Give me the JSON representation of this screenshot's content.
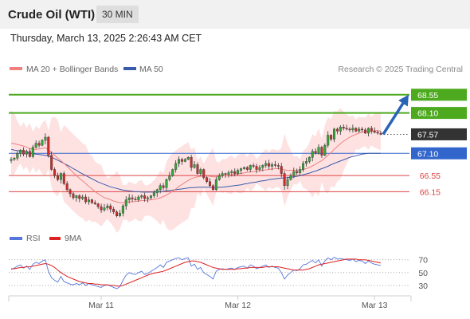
{
  "header": {
    "instrument": "Crude Oil (WTI)",
    "timeframe": "30 MIN",
    "datetime": "Thursday, March 13, 2025 2:26:43 AM CET"
  },
  "legend": {
    "ma20_bb": "MA 20 + Bollinger Bands",
    "ma50": "MA 50",
    "credit": "Research © 2025 Trading Central"
  },
  "colors": {
    "ma20": "#f08080",
    "ma50": "#3a5bab",
    "bollinger_fill": "#fdd8d8",
    "bull_candle": "#34a83c",
    "bear_candle": "#d12b2b",
    "resistance": "#4daa1f",
    "pivot": "#3366cc",
    "support": "#dd4444",
    "last_price": "#333333",
    "rsi": "#5577dd",
    "rsi_ma": "#dd2222",
    "arrow": "#2a63b6"
  },
  "chart_data": [
    {
      "type": "candlestick",
      "x_ticks": [
        "Mar 11",
        "Mar 12",
        "Mar 13"
      ],
      "y_domain": [
        65.25,
        69.0
      ],
      "last_price": 67.57,
      "levels": [
        {
          "value": 68.55,
          "label": "68.55",
          "kind": "resistance"
        },
        {
          "value": 68.1,
          "label": "68.10",
          "kind": "resistance"
        },
        {
          "value": 67.57,
          "label": "67.57",
          "kind": "last"
        },
        {
          "value": 67.1,
          "label": "67.10",
          "kind": "pivot"
        },
        {
          "value": 66.55,
          "label": "66.55",
          "kind": "support"
        },
        {
          "value": 66.15,
          "label": "66.15",
          "kind": "support"
        }
      ],
      "target_arrow": {
        "from": 67.57,
        "to": 68.55
      },
      "close": [
        66.95,
        66.98,
        67.1,
        67.18,
        67.08,
        67.15,
        67.02,
        67.25,
        67.35,
        67.3,
        67.42,
        67.5,
        67.05,
        66.7,
        66.55,
        66.45,
        66.6,
        66.35,
        66.2,
        66.1,
        66.0,
        66.05,
        65.98,
        66.02,
        65.9,
        65.95,
        65.88,
        65.85,
        65.78,
        65.7,
        65.75,
        65.8,
        65.72,
        65.65,
        65.55,
        65.62,
        65.8,
        65.95,
        66.0,
        65.97,
        65.95,
        66.02,
        66.05,
        65.98,
        66.0,
        66.05,
        66.12,
        66.2,
        66.3,
        66.25,
        66.45,
        66.55,
        66.7,
        66.85,
        66.95,
        66.9,
        66.95,
        67.0,
        66.75,
        66.82,
        66.6,
        66.7,
        66.5,
        66.4,
        66.3,
        66.2,
        66.45,
        66.55,
        66.6,
        66.58,
        66.62,
        66.65,
        66.6,
        66.68,
        66.72,
        66.75,
        66.7,
        66.8,
        66.78,
        66.7,
        66.75,
        66.8,
        66.85,
        66.78,
        66.82,
        66.8,
        66.78,
        66.6,
        66.3,
        66.45,
        66.55,
        66.65,
        66.62,
        66.7,
        66.85,
        66.9,
        67.0,
        67.15,
        67.1,
        67.25,
        67.05,
        67.3,
        67.55,
        67.45,
        67.7,
        67.65,
        67.75,
        67.72,
        67.7,
        67.68,
        67.72,
        67.65,
        67.7,
        67.68,
        67.6,
        67.72,
        67.65,
        67.62,
        67.6,
        67.57
      ],
      "ma20": [
        67.35,
        67.34,
        67.32,
        67.3,
        67.28,
        67.25,
        67.22,
        67.2,
        67.2,
        67.21,
        67.22,
        67.24,
        67.18,
        67.12,
        67.05,
        66.98,
        66.92,
        66.85,
        66.78,
        66.7,
        66.62,
        66.55,
        66.48,
        66.42,
        66.35,
        66.28,
        66.22,
        66.15,
        66.1,
        66.05,
        66.0,
        65.98,
        65.95,
        65.92,
        65.9,
        65.88,
        65.88,
        65.89,
        65.9,
        65.9,
        65.91,
        65.92,
        65.93,
        65.93,
        65.94,
        65.95,
        65.96,
        65.98,
        66.0,
        66.03,
        66.07,
        66.11,
        66.16,
        66.22,
        66.28,
        66.33,
        66.38,
        66.43,
        66.47,
        66.5,
        66.52,
        66.53,
        66.54,
        66.54,
        66.53,
        66.52,
        66.52,
        66.53,
        66.54,
        66.55,
        66.56,
        66.57,
        66.58,
        66.59,
        66.6,
        66.62,
        66.63,
        66.64,
        66.65,
        66.66,
        66.67,
        66.68,
        66.69,
        66.7,
        66.71,
        66.72,
        66.72,
        66.71,
        66.69,
        66.68,
        66.68,
        66.68,
        66.68,
        66.69,
        66.7,
        66.72,
        66.75,
        66.79,
        66.83,
        66.88,
        66.92,
        66.98,
        67.05,
        67.12,
        67.2,
        67.27,
        67.34,
        67.4,
        67.45,
        67.5,
        67.54,
        67.57,
        67.6,
        67.62,
        67.63,
        67.64,
        67.65,
        67.66,
        67.66,
        67.65
      ],
      "ma50": [
        67.2,
        67.18,
        67.17,
        67.16,
        67.15,
        67.13,
        67.11,
        67.09,
        67.08,
        67.07,
        67.06,
        67.05,
        67.03,
        67.0,
        66.97,
        66.93,
        66.89,
        66.85,
        66.81,
        66.77,
        66.72,
        66.68,
        66.63,
        66.59,
        66.55,
        66.51,
        66.47,
        66.43,
        66.39,
        66.36,
        66.33,
        66.3,
        66.27,
        66.25,
        66.23,
        66.21,
        66.19,
        66.18,
        66.17,
        66.16,
        66.15,
        66.15,
        66.14,
        66.14,
        66.14,
        66.14,
        66.14,
        66.15,
        66.15,
        66.16,
        66.17,
        66.18,
        66.19,
        66.2,
        66.21,
        66.22,
        66.23,
        66.24,
        66.25,
        66.25,
        66.26,
        66.26,
        66.26,
        66.26,
        66.26,
        66.25,
        66.25,
        66.26,
        66.26,
        66.27,
        66.28,
        66.29,
        66.3,
        66.31,
        66.32,
        66.34,
        66.35,
        66.37,
        66.38,
        66.39,
        66.41,
        66.42,
        66.43,
        66.45,
        66.46,
        66.47,
        66.48,
        66.49,
        66.49,
        66.5,
        66.51,
        66.52,
        66.53,
        66.55,
        66.57,
        66.59,
        66.61,
        66.64,
        66.66,
        66.69,
        66.72,
        66.75,
        66.78,
        66.82,
        66.85,
        66.88,
        66.91,
        66.94,
        66.97,
        67.0,
        67.02,
        67.04,
        67.06,
        67.08,
        67.09,
        67.1,
        67.1,
        67.1,
        67.1,
        67.1
      ]
    },
    {
      "type": "line",
      "title": "RSI",
      "legend": [
        "RSI",
        "9MA"
      ],
      "y_ticks": [
        70,
        50,
        30
      ],
      "y_domain": [
        20,
        82
      ],
      "rsi": [
        55,
        57,
        60,
        62,
        57,
        60,
        55,
        63,
        66,
        64,
        68,
        70,
        52,
        42,
        38,
        35,
        44,
        36,
        34,
        32,
        31,
        33,
        31,
        34,
        30,
        33,
        31,
        30,
        28,
        27,
        30,
        31,
        29,
        27,
        25,
        28,
        38,
        46,
        50,
        48,
        47,
        50,
        52,
        47,
        49,
        52,
        55,
        58,
        62,
        58,
        66,
        68,
        70,
        72,
        73,
        70,
        72,
        73,
        60,
        63,
        55,
        58,
        50,
        47,
        44,
        40,
        52,
        55,
        56,
        55,
        56,
        57,
        55,
        58,
        59,
        60,
        57,
        62,
        60,
        56,
        58,
        60,
        62,
        58,
        60,
        58,
        57,
        50,
        40,
        46,
        50,
        54,
        53,
        56,
        62,
        63,
        66,
        69,
        65,
        70,
        60,
        68,
        73,
        70,
        74,
        71,
        72,
        71,
        70,
        69,
        71,
        67,
        69,
        68,
        64,
        68,
        65,
        63,
        62,
        61
      ],
      "rsi_ma": [
        56,
        56,
        57,
        58,
        58,
        59,
        59,
        60,
        61,
        62,
        63,
        64,
        63,
        61,
        58,
        54,
        50,
        47,
        44,
        42,
        40,
        38,
        36,
        35,
        34,
        33,
        33,
        32,
        32,
        31,
        31,
        31,
        30,
        30,
        29,
        29,
        30,
        32,
        34,
        36,
        38,
        40,
        42,
        44,
        46,
        48,
        49,
        50,
        51,
        52,
        54,
        56,
        58,
        60,
        62,
        64,
        66,
        67,
        68,
        68,
        67,
        66,
        64,
        62,
        60,
        58,
        57,
        56,
        55,
        55,
        55,
        55,
        55,
        56,
        56,
        57,
        57,
        58,
        58,
        58,
        58,
        58,
        59,
        59,
        59,
        59,
        59,
        58,
        57,
        56,
        55,
        54,
        54,
        54,
        54,
        55,
        56,
        58,
        60,
        62,
        63,
        64,
        65,
        66,
        67,
        68,
        69,
        70,
        71,
        71,
        71,
        71,
        70,
        70,
        70,
        69,
        68,
        67,
        66,
        65
      ]
    }
  ]
}
